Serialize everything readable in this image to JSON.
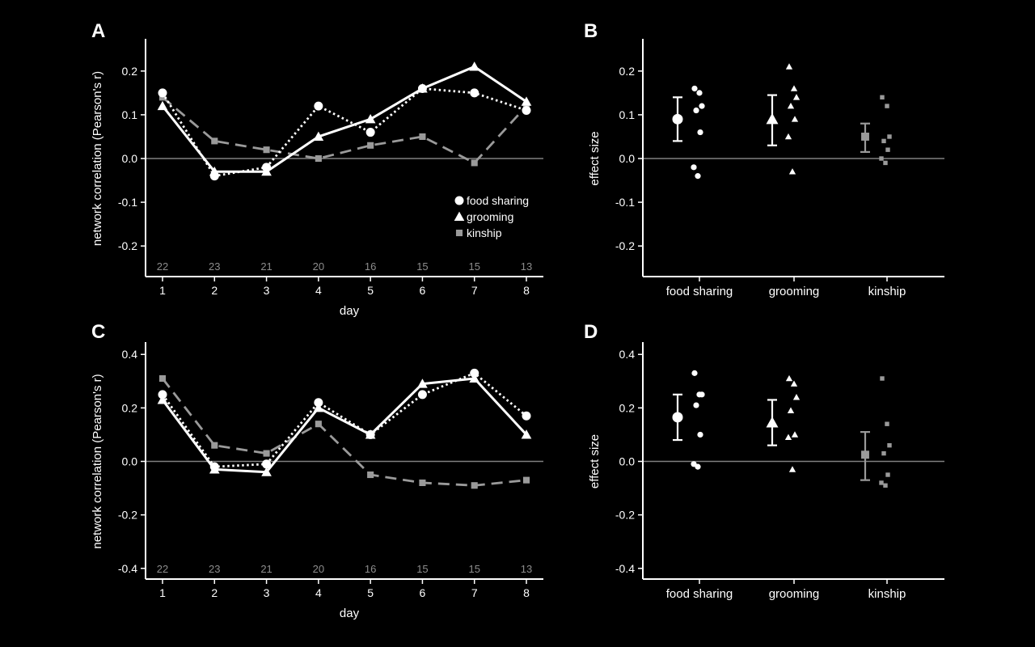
{
  "colors": {
    "background": "#000000",
    "axis": "#ffffff",
    "food_sharing": "#ffffff",
    "grooming": "#ffffff",
    "kinship": "#9a9a9a",
    "zero_line": "#808080",
    "sample_size_text": "#8c8c8c"
  },
  "chart_data": [
    {
      "panel": "A",
      "type": "line",
      "xlabel": "day",
      "ylabel": "network correlation (Pearson's r)",
      "x": [
        1,
        2,
        3,
        4,
        5,
        6,
        7,
        8
      ],
      "x_tick_labels": [
        "1",
        "2",
        "3",
        "4",
        "5",
        "6",
        "7",
        "8"
      ],
      "ylim": [
        -0.27,
        0.27
      ],
      "y_ticks": [
        -0.2,
        -0.1,
        0.0,
        0.1,
        0.2
      ],
      "y_tick_labels": [
        "-0.2",
        "-0.1",
        "0.0",
        "0.1",
        "0.2"
      ],
      "sample_sizes": [
        "22",
        "23",
        "21",
        "20",
        "16",
        "15",
        "15",
        "13"
      ],
      "legend_position": "bottom-right",
      "series": [
        {
          "name": "food sharing",
          "marker": "circle",
          "line": "dotted",
          "values": [
            0.15,
            -0.04,
            -0.02,
            0.12,
            0.06,
            0.16,
            0.15,
            0.11
          ]
        },
        {
          "name": "grooming",
          "marker": "triangle",
          "line": "solid",
          "values": [
            0.12,
            -0.03,
            -0.03,
            0.05,
            0.09,
            0.16,
            0.21,
            0.13
          ]
        },
        {
          "name": "kinship",
          "marker": "square",
          "line": "dashed",
          "values": [
            0.14,
            0.04,
            0.02,
            0.0,
            0.03,
            0.05,
            -0.01,
            0.12
          ]
        }
      ]
    },
    {
      "panel": "B",
      "type": "scatter",
      "xlabel": "",
      "ylabel": "effect size",
      "categories": [
        "food sharing",
        "grooming",
        "kinship"
      ],
      "ylim": [
        -0.27,
        0.27
      ],
      "y_ticks": [
        -0.2,
        -0.1,
        0.0,
        0.1,
        0.2
      ],
      "y_tick_labels": [
        "-0.2",
        "-0.1",
        "0.0",
        "0.1",
        "0.2"
      ],
      "series": [
        {
          "name": "food sharing",
          "marker": "circle",
          "mean": 0.09,
          "ci": [
            0.04,
            0.14
          ],
          "points": [
            0.16,
            0.15,
            0.12,
            0.11,
            0.06,
            -0.02,
            -0.04
          ]
        },
        {
          "name": "grooming",
          "marker": "triangle",
          "mean": 0.09,
          "ci": [
            0.03,
            0.145
          ],
          "points": [
            0.21,
            0.16,
            0.14,
            0.12,
            0.09,
            0.05,
            -0.03
          ]
        },
        {
          "name": "kinship",
          "marker": "square",
          "mean": 0.05,
          "ci": [
            0.015,
            0.08
          ],
          "points": [
            0.14,
            0.12,
            0.05,
            0.04,
            0.02,
            0.0,
            -0.01
          ]
        }
      ]
    },
    {
      "panel": "C",
      "type": "line",
      "xlabel": "day",
      "ylabel": "network correlation (Pearson's r)",
      "x": [
        1,
        2,
        3,
        4,
        5,
        6,
        7,
        8
      ],
      "x_tick_labels": [
        "1",
        "2",
        "3",
        "4",
        "5",
        "6",
        "7",
        "8"
      ],
      "ylim": [
        -0.44,
        0.44
      ],
      "y_ticks": [
        -0.4,
        -0.2,
        0.0,
        0.2,
        0.4
      ],
      "y_tick_labels": [
        "-0.4",
        "-0.2",
        "0.0",
        "0.2",
        "0.4"
      ],
      "sample_sizes": [
        "22",
        "23",
        "21",
        "20",
        "16",
        "15",
        "15",
        "13"
      ],
      "series": [
        {
          "name": "food sharing",
          "marker": "circle",
          "line": "dotted",
          "values": [
            0.25,
            -0.02,
            -0.01,
            0.22,
            0.1,
            0.25,
            0.33,
            0.17
          ]
        },
        {
          "name": "grooming",
          "marker": "triangle",
          "line": "solid",
          "values": [
            0.23,
            -0.03,
            -0.04,
            0.2,
            0.1,
            0.29,
            0.31,
            0.1
          ]
        },
        {
          "name": "kinship",
          "marker": "square",
          "line": "dashed",
          "values": [
            0.31,
            0.06,
            0.03,
            0.14,
            -0.05,
            -0.08,
            -0.09,
            -0.07
          ]
        }
      ]
    },
    {
      "panel": "D",
      "type": "scatter",
      "xlabel": "",
      "ylabel": "effect size",
      "categories": [
        "food sharing",
        "grooming",
        "kinship"
      ],
      "ylim": [
        -0.44,
        0.44
      ],
      "y_ticks": [
        -0.4,
        -0.2,
        0.0,
        0.2,
        0.4
      ],
      "y_tick_labels": [
        "-0.4",
        "-0.2",
        "0.0",
        "0.2",
        "0.4"
      ],
      "series": [
        {
          "name": "food sharing",
          "marker": "circle",
          "mean": 0.165,
          "ci": [
            0.08,
            0.25
          ],
          "points": [
            0.33,
            0.25,
            0.25,
            0.21,
            0.1,
            -0.01,
            -0.02
          ]
        },
        {
          "name": "grooming",
          "marker": "triangle",
          "mean": 0.145,
          "ci": [
            0.06,
            0.23
          ],
          "points": [
            0.31,
            0.29,
            0.24,
            0.19,
            0.1,
            0.09,
            -0.03
          ]
        },
        {
          "name": "kinship",
          "marker": "square",
          "mean": 0.025,
          "ci": [
            -0.07,
            0.11
          ],
          "points": [
            0.31,
            0.14,
            0.06,
            0.03,
            -0.05,
            -0.08,
            -0.09
          ]
        }
      ]
    }
  ]
}
